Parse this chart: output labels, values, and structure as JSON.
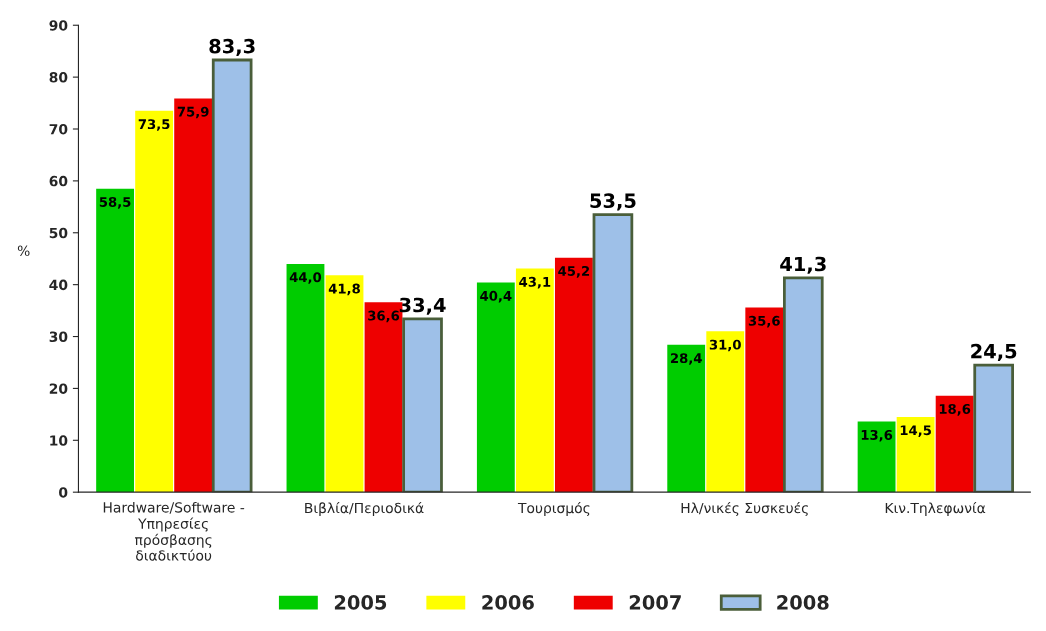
{
  "chart_data": {
    "type": "bar",
    "categories": [
      "Hardware/Software -\nΥπηρεσίες\nπρόσβασης\nδιαδικτύου",
      "Βιβλία/Περιοδικά",
      "Τουρισμός",
      "Ηλ/νικές Συσκευές",
      "Κιν.Τηλεφωνία"
    ],
    "ylabel": "%",
    "series": [
      {
        "name": "2005",
        "color": "#00cc00",
        "values": [
          58.5,
          44.0,
          40.4,
          28.4,
          13.6
        ],
        "value_labels": [
          "58,5",
          "44,0",
          "40,4",
          "28,4",
          "13,6"
        ]
      },
      {
        "name": "2006",
        "color": "#ffff00",
        "values": [
          73.5,
          41.8,
          43.1,
          31.0,
          14.5
        ],
        "value_labels": [
          "73,5",
          "41,8",
          "43,1",
          "31,0",
          "14,5"
        ]
      },
      {
        "name": "2007",
        "color": "#ee0000",
        "values": [
          75.9,
          36.6,
          45.2,
          35.6,
          18.6
        ],
        "value_labels": [
          "75,9",
          "36,6",
          "45,2",
          "35,6",
          "18,6"
        ]
      },
      {
        "name": "2008",
        "color": "#9ec0e8",
        "values": [
          83.3,
          33.4,
          53.5,
          41.3,
          24.5
        ],
        "value_labels": [
          "83,3",
          "33,4",
          "53,5",
          "41,3",
          "24,5"
        ]
      }
    ],
    "ylim": [
      0,
      90
    ],
    "yticks": [
      0,
      10,
      20,
      30,
      40,
      50,
      60,
      70,
      80,
      90
    ],
    "grid": false,
    "legend": "bottom"
  }
}
